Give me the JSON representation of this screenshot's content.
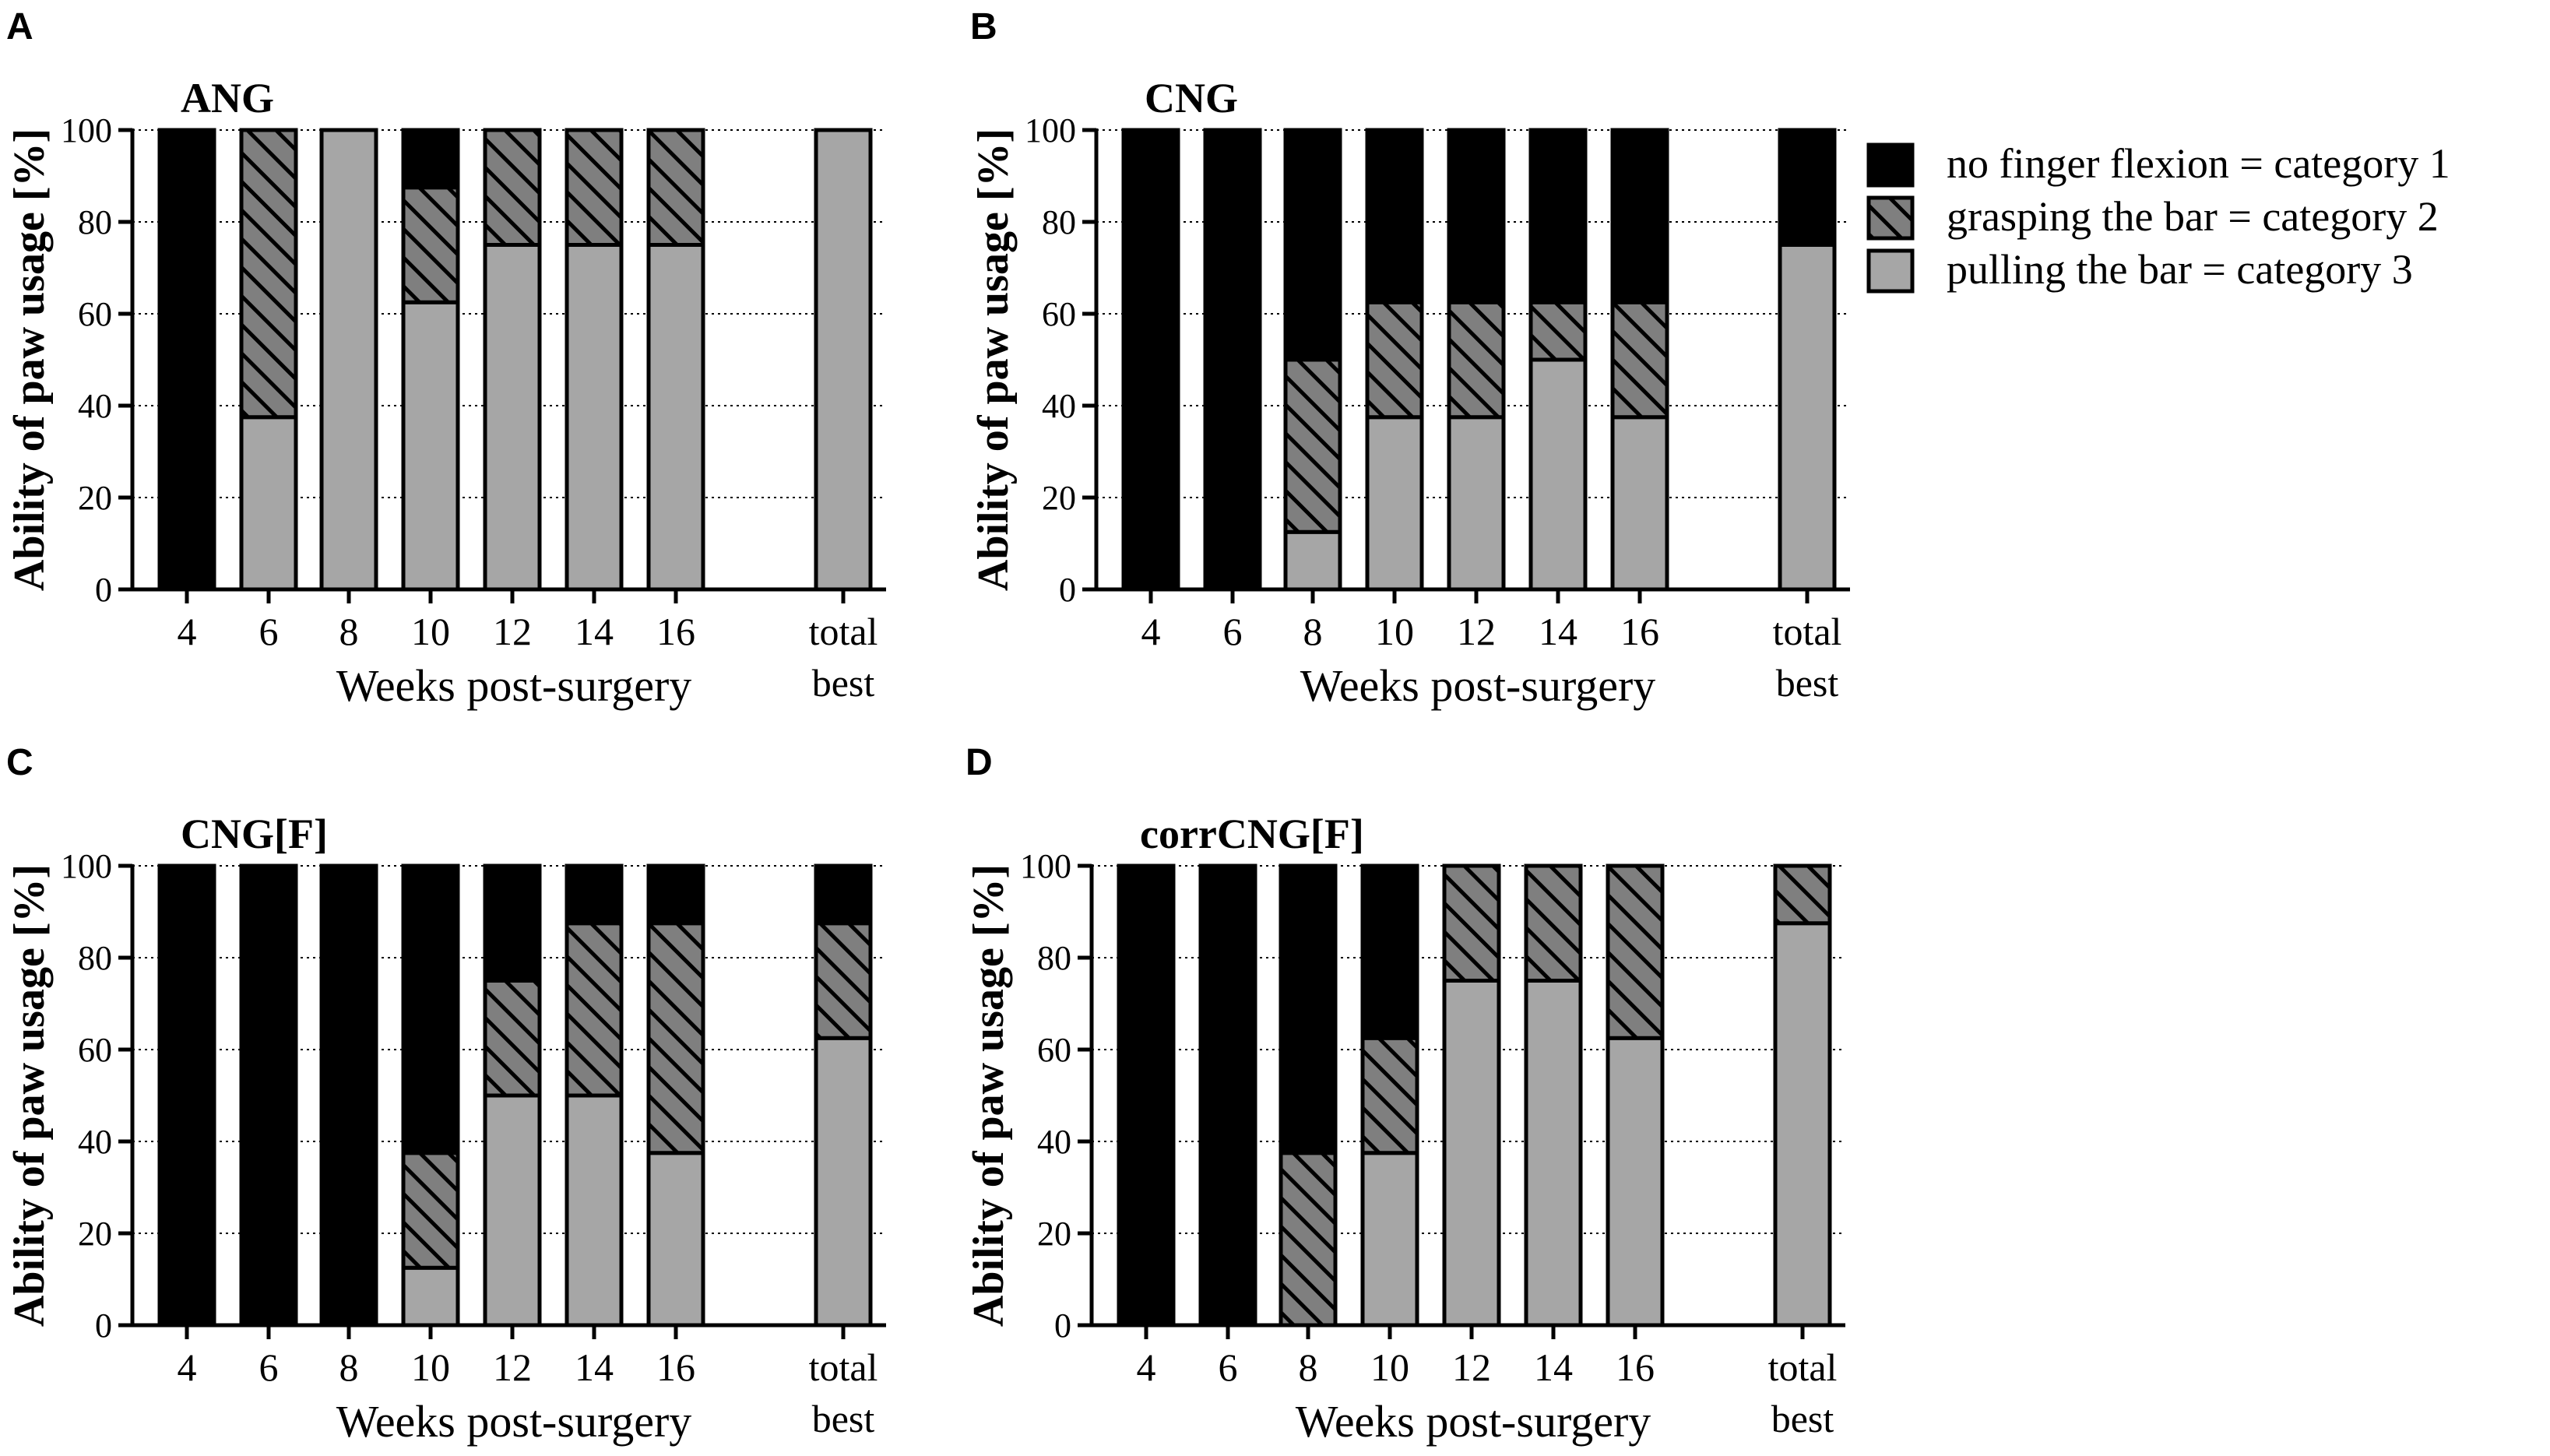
{
  "colors": {
    "category1": "#000000",
    "category2": "#7f7f7f",
    "category3": "#a6a6a6",
    "grid": "#000000",
    "axis": "#000000"
  },
  "legend": {
    "items": [
      {
        "label": "no finger flexion = category 1",
        "category": "category1",
        "pattern": "solid"
      },
      {
        "label": "grasping the bar = category 2",
        "category": "category2",
        "pattern": "hatched"
      },
      {
        "label": "pulling the bar = category 3",
        "category": "category3",
        "pattern": "solid"
      }
    ]
  },
  "chart_data": [
    {
      "type": "bar",
      "stacked": true,
      "panel_letter": "A",
      "title": "ANG",
      "xlabel": "Weeks post-surgery",
      "ylabel": "Ability of paw usage [%]",
      "ylim": [
        0,
        100
      ],
      "yticks": [
        "0",
        "20",
        "40",
        "60",
        "80",
        "100"
      ],
      "grid": "horizontal dotted",
      "categories": [
        "4",
        "6",
        "8",
        "10",
        "12",
        "14",
        "16",
        "total best"
      ],
      "series": [
        {
          "name": "pulling the bar = category 3",
          "values": [
            0,
            37.5,
            100,
            62.5,
            75,
            75,
            75,
            100
          ]
        },
        {
          "name": "grasping the bar = category 2",
          "values": [
            0,
            62.5,
            0,
            25,
            25,
            25,
            25,
            0
          ]
        },
        {
          "name": "no finger flexion = category 1",
          "values": [
            100,
            0,
            0,
            12.5,
            0,
            0,
            0,
            0
          ]
        }
      ]
    },
    {
      "type": "bar",
      "stacked": true,
      "panel_letter": "B",
      "title": "CNG",
      "xlabel": "Weeks post-surgery",
      "ylabel": "Ability of paw usage [%]",
      "ylim": [
        0,
        100
      ],
      "yticks": [
        "0",
        "20",
        "40",
        "60",
        "80",
        "100"
      ],
      "grid": "horizontal dotted",
      "categories": [
        "4",
        "6",
        "8",
        "10",
        "12",
        "14",
        "16",
        "total best"
      ],
      "series": [
        {
          "name": "pulling the bar = category 3",
          "values": [
            0,
            0,
            12.5,
            37.5,
            37.5,
            50,
            37.5,
            75
          ]
        },
        {
          "name": "grasping the bar = category 2",
          "values": [
            0,
            0,
            37.5,
            25,
            25,
            12.5,
            25,
            0
          ]
        },
        {
          "name": "no finger flexion = category 1",
          "values": [
            100,
            100,
            50,
            37.5,
            37.5,
            37.5,
            37.5,
            25
          ]
        }
      ]
    },
    {
      "type": "bar",
      "stacked": true,
      "panel_letter": "C",
      "title": "CNG[F]",
      "xlabel": "Weeks post-surgery",
      "ylabel": "Ability of paw usage [%]",
      "ylim": [
        0,
        100
      ],
      "yticks": [
        "0",
        "20",
        "40",
        "60",
        "80",
        "100"
      ],
      "grid": "horizontal dotted",
      "categories": [
        "4",
        "6",
        "8",
        "10",
        "12",
        "14",
        "16",
        "total best"
      ],
      "series": [
        {
          "name": "pulling the bar = category 3",
          "values": [
            0,
            0,
            0,
            12.5,
            50,
            50,
            37.5,
            62.5
          ]
        },
        {
          "name": "grasping the bar = category 2",
          "values": [
            0,
            0,
            0,
            25,
            25,
            37.5,
            50,
            25
          ]
        },
        {
          "name": "no finger flexion = category 1",
          "values": [
            100,
            100,
            100,
            62.5,
            25,
            12.5,
            12.5,
            12.5
          ]
        }
      ]
    },
    {
      "type": "bar",
      "stacked": true,
      "panel_letter": "D",
      "title": "corrCNG[F]",
      "xlabel": "Weeks post-surgery",
      "ylabel": "Ability of paw usage [%]",
      "ylim": [
        0,
        100
      ],
      "yticks": [
        "0",
        "20",
        "40",
        "60",
        "80",
        "100"
      ],
      "grid": "horizontal dotted",
      "categories": [
        "4",
        "6",
        "8",
        "10",
        "12",
        "14",
        "16",
        "total best"
      ],
      "series": [
        {
          "name": "pulling the bar = category 3",
          "values": [
            0,
            0,
            0,
            37.5,
            75,
            75,
            62.5,
            87.5
          ]
        },
        {
          "name": "grasping the bar = category 2",
          "values": [
            0,
            0,
            37.5,
            25,
            25,
            25,
            37.5,
            12.5
          ]
        },
        {
          "name": "no finger flexion = category 1",
          "values": [
            100,
            100,
            62.5,
            37.5,
            0,
            0,
            0,
            0
          ]
        }
      ]
    }
  ]
}
